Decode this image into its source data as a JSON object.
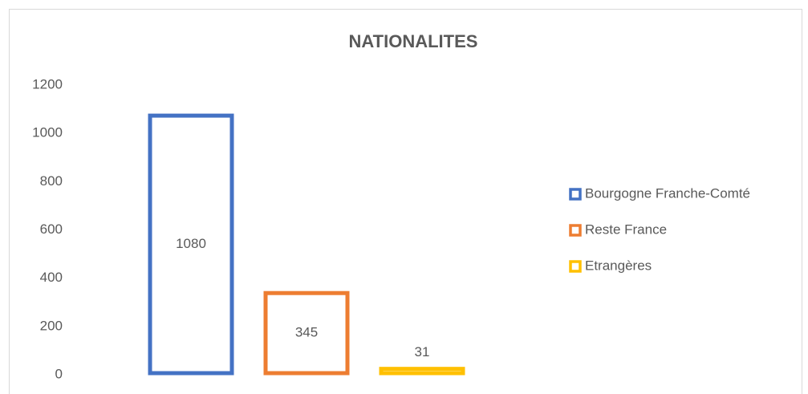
{
  "chart_data": {
    "type": "bar",
    "title": "NATIONALITES",
    "series": [
      {
        "name": "Bourgogne Franche-Comté",
        "color": "#4472c4",
        "values": [
          1080
        ]
      },
      {
        "name": "Reste France",
        "color": "#ed7d31",
        "values": [
          345
        ]
      },
      {
        "name": "Etrangères",
        "color": "#ffc000",
        "values": [
          31
        ]
      }
    ],
    "ylim": [
      0,
      1200
    ],
    "yticks": [
      0,
      200,
      400,
      600,
      800,
      1000,
      1200
    ],
    "grid": false,
    "legend": "right"
  }
}
